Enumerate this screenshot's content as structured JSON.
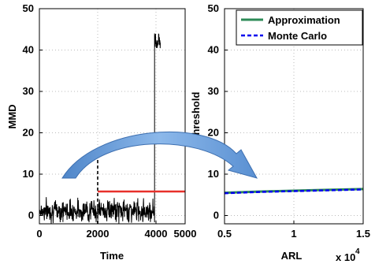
{
  "chart_data": [
    {
      "type": "line",
      "xlabel": "Time",
      "ylabel": "MMD",
      "xlim": [
        0,
        5000
      ],
      "ylim": [
        -2,
        50
      ],
      "xticks": [
        "0",
        "2000",
        "4000",
        "5000"
      ],
      "xtick_values": [
        0,
        2000,
        4000,
        5000
      ],
      "yticks": [
        "0",
        "10",
        "20",
        "30",
        "40",
        "50"
      ],
      "ytick_values": [
        0,
        10,
        20,
        30,
        40,
        50
      ],
      "grid": true,
      "series": [
        {
          "color": "#000000",
          "noise": {
            "mean": 1.2,
            "amplitude": 1.3,
            "x_end": 3950
          },
          "jump": {
            "x_start": 3950,
            "x_end": 4150,
            "y_low": 40,
            "y_high": 44
          }
        },
        {
          "color": "#e8302a",
          "x": [
            2000,
            5000
          ],
          "y": [
            5.8,
            5.8
          ]
        },
        {
          "color": "#333333",
          "dashed": true,
          "x": [
            2000,
            2000
          ],
          "y": [
            -2,
            16
          ]
        }
      ]
    },
    {
      "type": "line",
      "xlabel": "ARL",
      "ylabel": "Threshold",
      "xlim": [
        5000,
        15000
      ],
      "ylim": [
        -2,
        50
      ],
      "xticks": [
        "0.5",
        "1",
        "1.5"
      ],
      "xtick_values": [
        5000,
        10000,
        15000
      ],
      "xscale_label": "x 10",
      "xscale_exponent": "4",
      "yticks": [
        "0",
        "10",
        "20",
        "30",
        "40",
        "50"
      ],
      "ytick_values": [
        0,
        10,
        20,
        30,
        40,
        50
      ],
      "grid": true,
      "legend_position": "top-right",
      "series": [
        {
          "name": "Approximation",
          "color": "#2e8b57",
          "x": [
            5000,
            7500,
            10000,
            12500,
            15000
          ],
          "y": [
            5.5,
            5.8,
            6.0,
            6.2,
            6.4
          ]
        },
        {
          "name": "Monte Carlo",
          "color": "#0000ee",
          "dashed": true,
          "x": [
            5000,
            7500,
            10000,
            12500,
            15000
          ],
          "y": [
            5.4,
            5.7,
            5.9,
            6.1,
            6.3
          ]
        }
      ]
    }
  ],
  "colors": {
    "arrow_fill": "#6b9fd9",
    "arrow_stroke": "#3d6fb0"
  }
}
